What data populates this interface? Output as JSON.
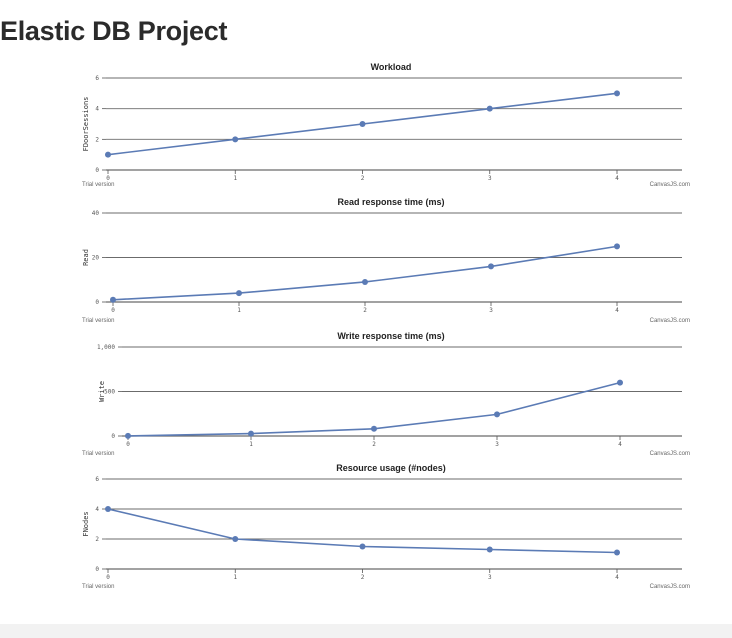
{
  "page": {
    "title": "Elastic DB Project"
  },
  "colors": {
    "series": "#5b7bb5",
    "grid": "#6b6b6b",
    "axis": "#555555"
  },
  "chart_data": [
    {
      "type": "line",
      "title": "Workload",
      "ylabel": "FDoorSessions",
      "footer_left": "Trial version",
      "footer_right": "CanvasJS.com",
      "x": [
        0,
        1,
        2,
        3,
        4
      ],
      "y": [
        1,
        2,
        3,
        4,
        5
      ],
      "ylim": [
        0,
        6
      ],
      "yticks": [
        0,
        2,
        4,
        6
      ],
      "ytick_labels": [
        "0",
        "2",
        "4",
        "6"
      ],
      "xticks": [
        0,
        1,
        2,
        3,
        4
      ],
      "xtick_labels": [
        "0",
        "1",
        "2",
        "3",
        "4"
      ],
      "grid": true
    },
    {
      "type": "line",
      "title": "Read response time (ms)",
      "ylabel": "Read",
      "footer_left": "Trial version",
      "footer_right": "CanvasJS.com",
      "x": [
        0,
        1,
        2,
        3,
        4
      ],
      "y": [
        1,
        4,
        9,
        16,
        25
      ],
      "ylim": [
        0,
        40
      ],
      "yticks": [
        0,
        20,
        40
      ],
      "ytick_labels": [
        "0",
        "20",
        "40"
      ],
      "xticks": [
        0,
        1,
        2,
        3,
        4
      ],
      "xtick_labels": [
        "0",
        "1",
        "2",
        "3",
        "4"
      ],
      "grid": true
    },
    {
      "type": "line",
      "title": "Write response time (ms)",
      "ylabel": "Write",
      "footer_left": "Trial version",
      "footer_right": "CanvasJS.com",
      "x": [
        0,
        1,
        2,
        3,
        4
      ],
      "y": [
        1,
        27,
        81,
        243,
        600
      ],
      "ylim": [
        0,
        1000
      ],
      "yticks": [
        0,
        500,
        1000
      ],
      "ytick_labels": [
        "0",
        "500",
        "1,000"
      ],
      "xticks": [
        0,
        1,
        2,
        3,
        4
      ],
      "xtick_labels": [
        "0",
        "1",
        "2",
        "3",
        "4"
      ],
      "grid": true
    },
    {
      "type": "line",
      "title": "Resource usage (#nodes)",
      "ylabel": "FNodes",
      "footer_left": "Trial version",
      "footer_right": "CanvasJS.com",
      "x": [
        0,
        1,
        2,
        3,
        4
      ],
      "y": [
        4,
        2,
        1.5,
        1.3,
        1.1
      ],
      "ylim": [
        0,
        6
      ],
      "yticks": [
        0,
        2,
        4,
        6
      ],
      "ytick_labels": [
        "0",
        "2",
        "4",
        "6"
      ],
      "xticks": [
        0,
        1,
        2,
        3,
        4
      ],
      "xtick_labels": [
        "0",
        "1",
        "2",
        "3",
        "4"
      ],
      "grid": true
    }
  ]
}
